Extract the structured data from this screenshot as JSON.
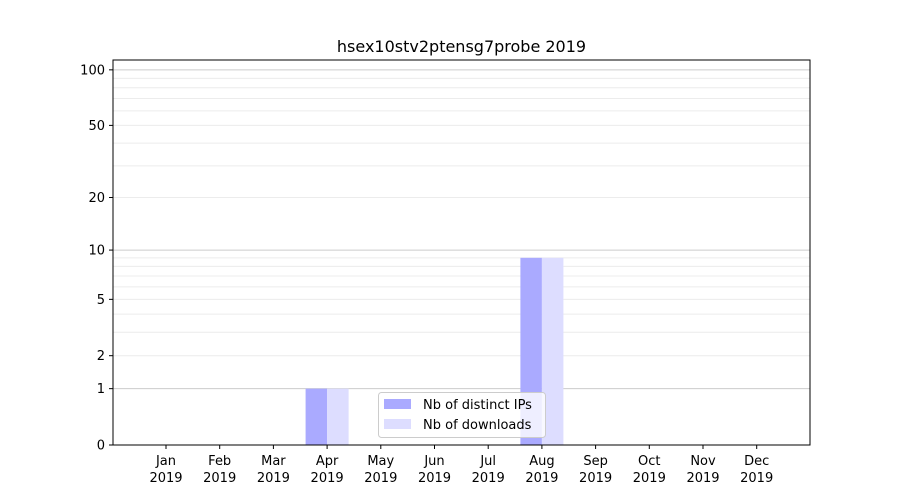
{
  "chart_data": {
    "type": "bar",
    "title": "hsex10stv2ptensg7probe 2019",
    "xlabel": "",
    "ylabel": "",
    "yscale": "log10(1+y)",
    "ylim": [
      0,
      113
    ],
    "yticks": [
      0,
      1,
      2,
      5,
      10,
      20,
      50,
      100
    ],
    "categories": [
      "Jan\n2019",
      "Feb\n2019",
      "Mar\n2019",
      "Apr\n2019",
      "May\n2019",
      "Jun\n2019",
      "Jul\n2019",
      "Aug\n2019",
      "Sep\n2019",
      "Oct\n2019",
      "Nov\n2019",
      "Dec\n2019"
    ],
    "series": [
      {
        "name": "Nb of distinct IPs",
        "color": "#aaaaff",
        "values": [
          0,
          0,
          0,
          1,
          0,
          0,
          0,
          9,
          0,
          0,
          0,
          0
        ]
      },
      {
        "name": "Nb of downloads",
        "color": "#ddddff",
        "values": [
          0,
          0,
          0,
          1,
          0,
          0,
          0,
          9,
          0,
          0,
          0,
          0
        ]
      }
    ],
    "grid": true,
    "legend_position": "lower-center"
  }
}
